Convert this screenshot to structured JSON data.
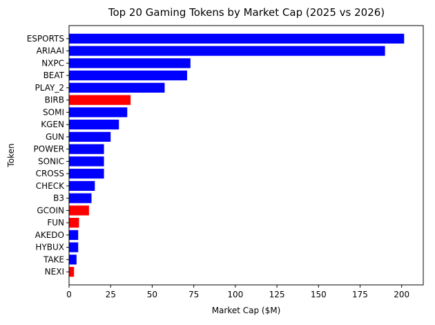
{
  "chart_data": {
    "type": "bar",
    "orientation": "horizontal",
    "title": "Top 20 Gaming Tokens by Market Cap (2025 vs 2026)",
    "xlabel": "Market Cap ($M)",
    "ylabel": "Token",
    "xlim": [
      0,
      213
    ],
    "xticks": [
      0,
      25,
      50,
      75,
      100,
      125,
      150,
      175,
      200
    ],
    "grid": false,
    "colors": {
      "blue": "#0000ff",
      "red": "#ff0000"
    },
    "categories": [
      "ESPORTS",
      "ARIAAI",
      "NXPC",
      "BEAT",
      "PLAY_2",
      "BIRB",
      "SOMI",
      "KGEN",
      "GUN",
      "POWER",
      "SONIC",
      "CROSS",
      "CHECK",
      "B3",
      "GCOIN",
      "FUN",
      "AKEDO",
      "HYBUX",
      "TAKE",
      "NEXI"
    ],
    "values": [
      201.5,
      190,
      73,
      71,
      57.5,
      37,
      35,
      30,
      25,
      21,
      21,
      21,
      15.5,
      13.5,
      12,
      6,
      5.5,
      5.5,
      4.5,
      3
    ],
    "bar_colors": [
      "blue",
      "blue",
      "blue",
      "blue",
      "blue",
      "red",
      "blue",
      "blue",
      "blue",
      "blue",
      "blue",
      "blue",
      "blue",
      "blue",
      "red",
      "red",
      "blue",
      "blue",
      "blue",
      "red"
    ]
  }
}
